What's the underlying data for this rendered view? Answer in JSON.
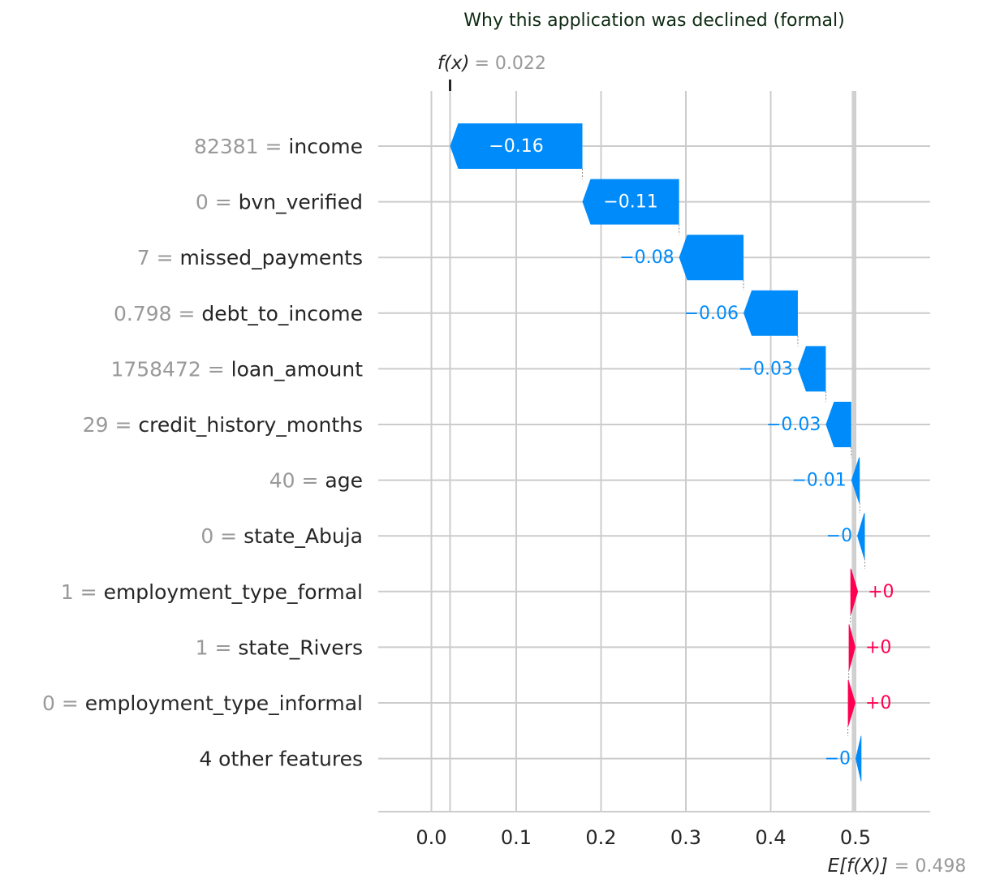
{
  "chart_data": {
    "type": "waterfall",
    "title": "Why this application was declined (formal)",
    "fx_label": "f(x)",
    "fx_value": 0.022,
    "fx_value_text": "= 0.022",
    "base_label": "E[f(X)]",
    "base_value": 0.498,
    "base_value_text": "= 0.498",
    "xlim": [
      -0.06,
      0.59
    ],
    "xticks": [
      0.0,
      0.1,
      0.2,
      0.3,
      0.4,
      0.5
    ],
    "xtick_labels": [
      "0.0",
      "0.1",
      "0.2",
      "0.3",
      "0.4",
      "0.5"
    ],
    "features": [
      {
        "value": "82381",
        "name": "income",
        "contribution": -0.16,
        "label": "−0.16",
        "start": 0.178,
        "end": 0.022
      },
      {
        "value": "0",
        "name": "bvn_verified",
        "contribution": -0.11,
        "label": "−0.11",
        "start": 0.292,
        "end": 0.178
      },
      {
        "value": "7",
        "name": "missed_payments",
        "contribution": -0.08,
        "label": "−0.08",
        "start": 0.368,
        "end": 0.292
      },
      {
        "value": "0.798",
        "name": "debt_to_income",
        "contribution": -0.06,
        "label": "−0.06",
        "start": 0.432,
        "end": 0.368
      },
      {
        "value": "1758472",
        "name": "loan_amount",
        "contribution": -0.03,
        "label": "−0.03",
        "start": 0.465,
        "end": 0.432
      },
      {
        "value": "29",
        "name": "credit_history_months",
        "contribution": -0.03,
        "label": "−0.03",
        "start": 0.495,
        "end": 0.465
      },
      {
        "value": "40",
        "name": "age",
        "contribution": -0.01,
        "label": "−0.01",
        "start": 0.505,
        "end": 0.495
      },
      {
        "value": "0",
        "name": "state_Abuja",
        "contribution": -0.0,
        "label": "−0",
        "start": 0.511,
        "end": 0.502
      },
      {
        "value": "1",
        "name": "employment_type_formal",
        "contribution": 0.0,
        "label": "+0",
        "start": 0.494,
        "end": 0.503
      },
      {
        "value": "1",
        "name": "state_Rivers",
        "contribution": 0.0,
        "label": "+0",
        "start": 0.492,
        "end": 0.5
      },
      {
        "value": "0",
        "name": "employment_type_informal",
        "contribution": 0.0,
        "label": "+0",
        "start": 0.491,
        "end": 0.5
      },
      {
        "value": "",
        "name": "4 other features",
        "contribution": -0.0,
        "label": "−0",
        "start": 0.507,
        "end": 0.5
      }
    ],
    "colors": {
      "negative": "#008bfb",
      "positive": "#ff0051",
      "grid": "#cccccc",
      "axis": "#cccccc",
      "label_gray": "#999999",
      "text": "#262626"
    }
  }
}
